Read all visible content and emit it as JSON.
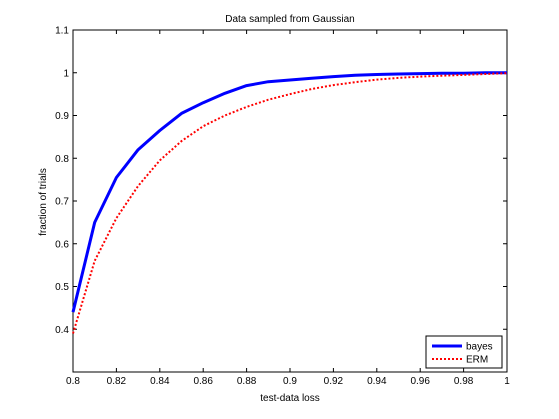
{
  "chart_data": {
    "type": "line",
    "title": "Data sampled from Gaussian",
    "xlabel": "test-data loss",
    "ylabel": "fraction of trials",
    "xlim": [
      0.8,
      1.0
    ],
    "ylim": [
      0.3,
      1.1
    ],
    "x_ticks": [
      "0.8",
      "0.82",
      "0.84",
      "0.86",
      "0.88",
      "0.9",
      "0.92",
      "0.94",
      "0.96",
      "0.98",
      "1"
    ],
    "y_ticks": [
      "0.4",
      "0.5",
      "0.6",
      "0.7",
      "0.8",
      "0.9",
      "1",
      "1.1"
    ],
    "grid": false,
    "legend_position": "bottom-right",
    "series": [
      {
        "name": "bayes",
        "color": "#0000ff",
        "style": "solid",
        "x": [
          0.8,
          0.81,
          0.82,
          0.83,
          0.84,
          0.85,
          0.86,
          0.87,
          0.88,
          0.89,
          0.9,
          0.91,
          0.92,
          0.93,
          0.94,
          0.95,
          0.96,
          0.97,
          0.98,
          0.99,
          1.0
        ],
        "y": [
          0.44,
          0.65,
          0.755,
          0.82,
          0.865,
          0.905,
          0.93,
          0.952,
          0.97,
          0.979,
          0.983,
          0.987,
          0.991,
          0.994,
          0.996,
          0.997,
          0.998,
          0.999,
          0.999,
          1.0,
          1.0
        ]
      },
      {
        "name": "ERM",
        "color": "#ff0000",
        "style": "dotted",
        "x": [
          0.8,
          0.81,
          0.82,
          0.83,
          0.84,
          0.85,
          0.86,
          0.87,
          0.88,
          0.89,
          0.9,
          0.91,
          0.92,
          0.93,
          0.94,
          0.95,
          0.96,
          0.97,
          0.98,
          0.99,
          1.0
        ],
        "y": [
          0.39,
          0.56,
          0.66,
          0.735,
          0.795,
          0.84,
          0.875,
          0.9,
          0.92,
          0.937,
          0.95,
          0.962,
          0.971,
          0.978,
          0.984,
          0.988,
          0.991,
          0.993,
          0.995,
          0.997,
          0.999
        ]
      }
    ]
  }
}
